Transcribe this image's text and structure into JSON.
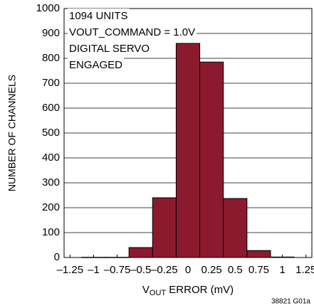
{
  "chart_data": {
    "type": "histogram",
    "annotations": [
      "1094 UNITS",
      "VOUT_COMMAND = 1.0V",
      "DIGITAL SERVO",
      "ENGAGED"
    ],
    "ylabel": "NUMBER OF CHANNELS",
    "xlabel": [
      "V",
      "OUT",
      " ERROR (mV)"
    ],
    "footnote": "38821 G01a",
    "bins": [
      -1.125,
      -0.875,
      -0.625,
      -0.375,
      -0.125,
      0.125,
      0.375,
      0.625,
      0.875,
      1.125
    ],
    "values": [
      1,
      1,
      40,
      240,
      860,
      785,
      237,
      28,
      2
    ],
    "color": "#8c1a2e",
    "edgecolor": "#000000",
    "xlim": [
      -1.3125,
      1.3125
    ],
    "ylim": [
      0,
      1000
    ],
    "xticks": [
      {
        "value": -1.25,
        "label": "–1.25"
      },
      {
        "value": -1,
        "label": "–1"
      },
      {
        "value": -0.75,
        "label": "–0.75"
      },
      {
        "value": -0.5,
        "label": "–0.5"
      },
      {
        "value": -0.25,
        "label": "–0.25"
      },
      0,
      0.25,
      0.5,
      0.75,
      1,
      1.25
    ],
    "yticks": [
      0,
      100,
      200,
      300,
      400,
      500,
      600,
      700,
      800,
      900,
      1000
    ],
    "grid": true
  }
}
